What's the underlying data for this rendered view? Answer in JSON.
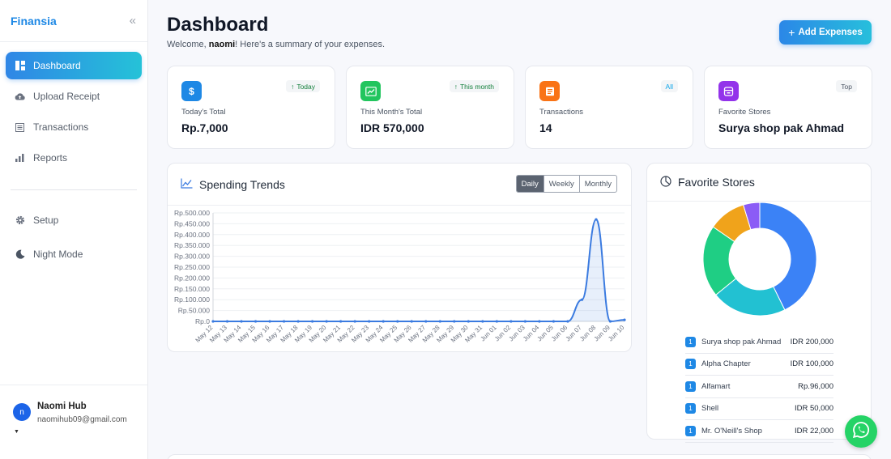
{
  "app": {
    "brand": "Finansia"
  },
  "sidebar": {
    "items": [
      {
        "label": "Dashboard",
        "icon": "dashboard-icon"
      },
      {
        "label": "Upload Receipt",
        "icon": "cloud-upload-icon"
      },
      {
        "label": "Transactions",
        "icon": "list-icon"
      },
      {
        "label": "Reports",
        "icon": "bar-chart-icon"
      }
    ],
    "items2": [
      {
        "label": "Setup",
        "icon": "gear-icon"
      },
      {
        "label": "Night Mode",
        "icon": "moon-icon"
      }
    ],
    "user": {
      "initial": "n",
      "name": "Naomi Hub",
      "email": "naomihub09@gmail.com"
    }
  },
  "header": {
    "title": "Dashboard",
    "welcome_prefix": "Welcome, ",
    "username": "naomi",
    "welcome_suffix": "! Here's a summary of your expenses.",
    "add_label": "Add Expenses"
  },
  "cards": [
    {
      "icon": "$",
      "badge": "Today",
      "badge_arrow": "↑",
      "label": "Today's Total",
      "value": "Rp.7,000",
      "color": "#1e88e5",
      "badge_color": "#15803d"
    },
    {
      "icon": "",
      "badge": "This month",
      "badge_arrow": "↑",
      "label": "This Month's Total",
      "value": "IDR 570,000",
      "color": "#22c55e",
      "badge_color": "#15803d"
    },
    {
      "icon": "",
      "badge": "All",
      "badge_arrow": "",
      "label": "Transactions",
      "value": "14",
      "color": "#f97316",
      "badge_color": "#0ea5e9"
    },
    {
      "icon": "",
      "badge": "Top",
      "badge_arrow": "",
      "label": "Favorite Stores",
      "value": "Surya shop pak Ahmad",
      "color": "#9333ea",
      "badge_color": "#4b5563"
    }
  ],
  "spending": {
    "title": "Spending Trends",
    "tabs": [
      "Daily",
      "Weekly",
      "Monthly"
    ]
  },
  "favorites": {
    "title": "Favorite Stores",
    "stores": [
      {
        "rank": "1",
        "name": "Surya shop pak Ahmad",
        "amount": "IDR 200,000"
      },
      {
        "rank": "1",
        "name": "Alpha Chapter",
        "amount": "IDR 100,000"
      },
      {
        "rank": "1",
        "name": "Alfamart",
        "amount": "Rp.96,000"
      },
      {
        "rank": "1",
        "name": "Shell",
        "amount": "IDR 50,000"
      },
      {
        "rank": "1",
        "name": "Mr. O'Neill's Shop",
        "amount": "IDR 22,000"
      }
    ]
  },
  "chart_data": [
    {
      "type": "line",
      "title": "Spending Trends",
      "x": [
        "May 12",
        "May 13",
        "May 14",
        "May 15",
        "May 16",
        "May 17",
        "May 18",
        "May 19",
        "May 20",
        "May 21",
        "May 22",
        "May 23",
        "May 24",
        "May 25",
        "May 26",
        "May 27",
        "May 28",
        "May 29",
        "May 30",
        "May 31",
        "Jun 01",
        "Jun 02",
        "Jun 03",
        "Jun 04",
        "Jun 05",
        "Jun 06",
        "Jun 07",
        "Jun 08",
        "Jun 09",
        "Jun 10"
      ],
      "values": [
        0,
        0,
        0,
        0,
        0,
        0,
        0,
        0,
        0,
        0,
        0,
        0,
        0,
        0,
        0,
        0,
        0,
        0,
        0,
        0,
        0,
        0,
        0,
        0,
        0,
        0,
        100000,
        470000,
        0,
        7000
      ],
      "yticks": [
        "Rp.500.000",
        "Rp.450.000",
        "Rp.400.000",
        "Rp.350.000",
        "Rp.300.000",
        "Rp.250.000",
        "Rp.200.000",
        "Rp.150.000",
        "Rp.100.000",
        "Rp.50.000",
        "Rp.0"
      ],
      "ylim": [
        0,
        500000
      ],
      "color": "#3b7be0"
    },
    {
      "type": "pie",
      "title": "Favorite Stores",
      "categories": [
        "Surya shop pak Ahmad",
        "Alpha Chapter",
        "Alfamart",
        "Shell",
        "Mr. O'Neill's Shop"
      ],
      "values": [
        200000,
        100000,
        96000,
        50000,
        22000
      ],
      "colors": [
        "#3b82f6",
        "#22c1d2",
        "#1fce84",
        "#f0a31b",
        "#8b5cf6"
      ]
    }
  ]
}
